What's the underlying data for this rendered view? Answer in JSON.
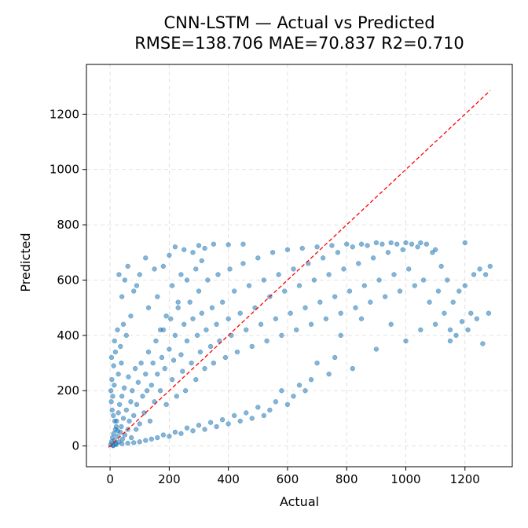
{
  "chart_data": {
    "type": "scatter",
    "title_line1": "CNN-LSTM — Actual vs Predicted",
    "title_line2": "RMSE=138.706 MAE=70.837 R2=0.710",
    "xlabel": "Actual",
    "ylabel": "Predicted",
    "xlim": [
      -80,
      1360
    ],
    "ylim": [
      -75,
      1380
    ],
    "xticks": [
      0,
      200,
      400,
      600,
      800,
      1000,
      1200
    ],
    "yticks": [
      0,
      200,
      400,
      600,
      800,
      1000,
      1200
    ],
    "xtick_labels": [
      "0",
      "200",
      "400",
      "600",
      "800",
      "1000",
      "1200"
    ],
    "ytick_labels": [
      "0",
      "200",
      "400",
      "600",
      "800",
      "1000",
      "1200"
    ],
    "grid": true,
    "point_color": "#1f77b4",
    "reference_line": {
      "x": [
        -5,
        1285
      ],
      "y": [
        -5,
        1285
      ],
      "color": "#ff0000",
      "style": "dashed"
    },
    "points": [
      [
        2,
        5
      ],
      [
        5,
        15
      ],
      [
        8,
        30
      ],
      [
        10,
        2
      ],
      [
        12,
        45
      ],
      [
        15,
        20
      ],
      [
        18,
        60
      ],
      [
        20,
        8
      ],
      [
        22,
        90
      ],
      [
        25,
        35
      ],
      [
        28,
        120
      ],
      [
        30,
        15
      ],
      [
        32,
        150
      ],
      [
        35,
        50
      ],
      [
        38,
        70
      ],
      [
        40,
        180
      ],
      [
        42,
        25
      ],
      [
        45,
        100
      ],
      [
        48,
        210
      ],
      [
        50,
        40
      ],
      [
        55,
        130
      ],
      [
        60,
        60
      ],
      [
        62,
        250
      ],
      [
        65,
        90
      ],
      [
        70,
        160
      ],
      [
        72,
        30
      ],
      [
        75,
        200
      ],
      [
        80,
        110
      ],
      [
        85,
        280
      ],
      [
        88,
        60
      ],
      [
        90,
        150
      ],
      [
        95,
        230
      ],
      [
        100,
        80
      ],
      [
        105,
        300
      ],
      [
        110,
        180
      ],
      [
        115,
        120
      ],
      [
        120,
        260
      ],
      [
        125,
        200
      ],
      [
        130,
        340
      ],
      [
        135,
        90
      ],
      [
        140,
        220
      ],
      [
        145,
        300
      ],
      [
        150,
        160
      ],
      [
        155,
        380
      ],
      [
        160,
        260
      ],
      [
        170,
        200
      ],
      [
        175,
        320
      ],
      [
        180,
        420
      ],
      [
        185,
        280
      ],
      [
        190,
        150
      ],
      [
        200,
        350
      ],
      [
        205,
        460
      ],
      [
        210,
        240
      ],
      [
        215,
        310
      ],
      [
        220,
        400
      ],
      [
        225,
        180
      ],
      [
        230,
        500
      ],
      [
        240,
        330
      ],
      [
        245,
        270
      ],
      [
        250,
        440
      ],
      [
        255,
        200
      ],
      [
        260,
        380
      ],
      [
        270,
        520
      ],
      [
        275,
        300
      ],
      [
        280,
        460
      ],
      [
        290,
        240
      ],
      [
        295,
        400
      ],
      [
        300,
        560
      ],
      [
        305,
        340
      ],
      [
        310,
        480
      ],
      [
        320,
        280
      ],
      [
        325,
        420
      ],
      [
        330,
        600
      ],
      [
        340,
        360
      ],
      [
        345,
        500
      ],
      [
        350,
        300
      ],
      [
        360,
        440
      ],
      [
        365,
        620
      ],
      [
        370,
        380
      ],
      [
        380,
        520
      ],
      [
        390,
        320
      ],
      [
        400,
        460
      ],
      [
        405,
        640
      ],
      [
        410,
        400
      ],
      [
        420,
        560
      ],
      [
        430,
        340
      ],
      [
        440,
        480
      ],
      [
        450,
        660
      ],
      [
        460,
        420
      ],
      [
        470,
        580
      ],
      [
        480,
        360
      ],
      [
        490,
        500
      ],
      [
        500,
        680
      ],
      [
        510,
        440
      ],
      [
        520,
        600
      ],
      [
        530,
        380
      ],
      [
        540,
        540
      ],
      [
        550,
        700
      ],
      [
        560,
        460
      ],
      [
        570,
        620
      ],
      [
        580,
        400
      ],
      [
        590,
        560
      ],
      [
        600,
        710
      ],
      [
        610,
        480
      ],
      [
        620,
        640
      ],
      [
        630,
        420
      ],
      [
        640,
        580
      ],
      [
        650,
        715
      ],
      [
        660,
        500
      ],
      [
        670,
        660
      ],
      [
        680,
        440
      ],
      [
        690,
        600
      ],
      [
        700,
        720
      ],
      [
        710,
        520
      ],
      [
        720,
        680
      ],
      [
        730,
        460
      ],
      [
        740,
        620
      ],
      [
        750,
        725
      ],
      [
        760,
        540
      ],
      [
        770,
        700
      ],
      [
        780,
        480
      ],
      [
        790,
        640
      ],
      [
        800,
        730
      ],
      [
        810,
        560
      ],
      [
        820,
        720
      ],
      [
        830,
        500
      ],
      [
        840,
        660
      ],
      [
        850,
        730
      ],
      [
        860,
        580
      ],
      [
        870,
        725
      ],
      [
        880,
        520
      ],
      [
        890,
        680
      ],
      [
        900,
        735
      ],
      [
        910,
        600
      ],
      [
        920,
        730
      ],
      [
        930,
        540
      ],
      [
        940,
        700
      ],
      [
        950,
        735
      ],
      [
        960,
        620
      ],
      [
        970,
        730
      ],
      [
        980,
        560
      ],
      [
        990,
        710
      ],
      [
        1000,
        735
      ],
      [
        1010,
        640
      ],
      [
        1020,
        730
      ],
      [
        1030,
        580
      ],
      [
        1040,
        720
      ],
      [
        1050,
        735
      ],
      [
        1060,
        600
      ],
      [
        1070,
        730
      ],
      [
        1080,
        520
      ],
      [
        1090,
        700
      ],
      [
        1100,
        710
      ],
      [
        1110,
        560
      ],
      [
        1120,
        650
      ],
      [
        1130,
        480
      ],
      [
        1140,
        600
      ],
      [
        1150,
        420
      ],
      [
        1160,
        520
      ],
      [
        1170,
        400
      ],
      [
        1180,
        560
      ],
      [
        1190,
        450
      ],
      [
        1200,
        580
      ],
      [
        1210,
        420
      ],
      [
        1220,
        480
      ],
      [
        1230,
        620
      ],
      [
        1240,
        460
      ],
      [
        1250,
        640
      ],
      [
        1260,
        370
      ],
      [
        1270,
        620
      ],
      [
        1280,
        480
      ],
      [
        1285,
        650
      ],
      [
        1200,
        735
      ],
      [
        1150,
        380
      ],
      [
        1100,
        440
      ],
      [
        1050,
        420
      ],
      [
        1000,
        380
      ],
      [
        950,
        440
      ],
      [
        900,
        350
      ],
      [
        850,
        460
      ],
      [
        820,
        280
      ],
      [
        780,
        400
      ],
      [
        760,
        320
      ],
      [
        740,
        260
      ],
      [
        700,
        300
      ],
      [
        680,
        240
      ],
      [
        660,
        200
      ],
      [
        640,
        220
      ],
      [
        620,
        180
      ],
      [
        600,
        150
      ],
      [
        580,
        200
      ],
      [
        560,
        160
      ],
      [
        540,
        130
      ],
      [
        520,
        110
      ],
      [
        500,
        140
      ],
      [
        480,
        100
      ],
      [
        460,
        120
      ],
      [
        440,
        90
      ],
      [
        420,
        110
      ],
      [
        400,
        80
      ],
      [
        380,
        95
      ],
      [
        360,
        70
      ],
      [
        340,
        85
      ],
      [
        320,
        60
      ],
      [
        300,
        75
      ],
      [
        280,
        55
      ],
      [
        260,
        65
      ],
      [
        240,
        45
      ],
      [
        220,
        50
      ],
      [
        200,
        35
      ],
      [
        180,
        40
      ],
      [
        160,
        30
      ],
      [
        140,
        25
      ],
      [
        120,
        20
      ],
      [
        100,
        15
      ],
      [
        80,
        12
      ],
      [
        60,
        10
      ],
      [
        40,
        8
      ],
      [
        20,
        5
      ],
      [
        10,
        1
      ],
      [
        50,
        600
      ],
      [
        30,
        620
      ],
      [
        60,
        650
      ],
      [
        80,
        560
      ],
      [
        100,
        620
      ],
      [
        40,
        540
      ],
      [
        120,
        680
      ],
      [
        70,
        470
      ],
      [
        150,
        640
      ],
      [
        90,
        580
      ],
      [
        200,
        690
      ],
      [
        250,
        710
      ],
      [
        180,
        650
      ],
      [
        220,
        720
      ],
      [
        300,
        725
      ],
      [
        280,
        700
      ],
      [
        350,
        730
      ],
      [
        320,
        715
      ],
      [
        400,
        728
      ],
      [
        450,
        730
      ],
      [
        15,
        380
      ],
      [
        25,
        420
      ],
      [
        35,
        360
      ],
      [
        45,
        440
      ],
      [
        55,
        400
      ],
      [
        5,
        320
      ],
      [
        12,
        290
      ],
      [
        18,
        340
      ],
      [
        28,
        260
      ],
      [
        38,
        300
      ],
      [
        3,
        200
      ],
      [
        6,
        240
      ],
      [
        9,
        180
      ],
      [
        14,
        220
      ],
      [
        4,
        160
      ],
      [
        7,
        130
      ],
      [
        11,
        110
      ],
      [
        16,
        90
      ],
      [
        21,
        70
      ],
      [
        26,
        55
      ],
      [
        130,
        500
      ],
      [
        160,
        540
      ],
      [
        190,
        470
      ],
      [
        210,
        580
      ],
      [
        240,
        620
      ],
      [
        170,
        420
      ],
      [
        230,
        520
      ],
      [
        260,
        600
      ],
      [
        290,
        640
      ],
      [
        310,
        670
      ]
    ]
  }
}
